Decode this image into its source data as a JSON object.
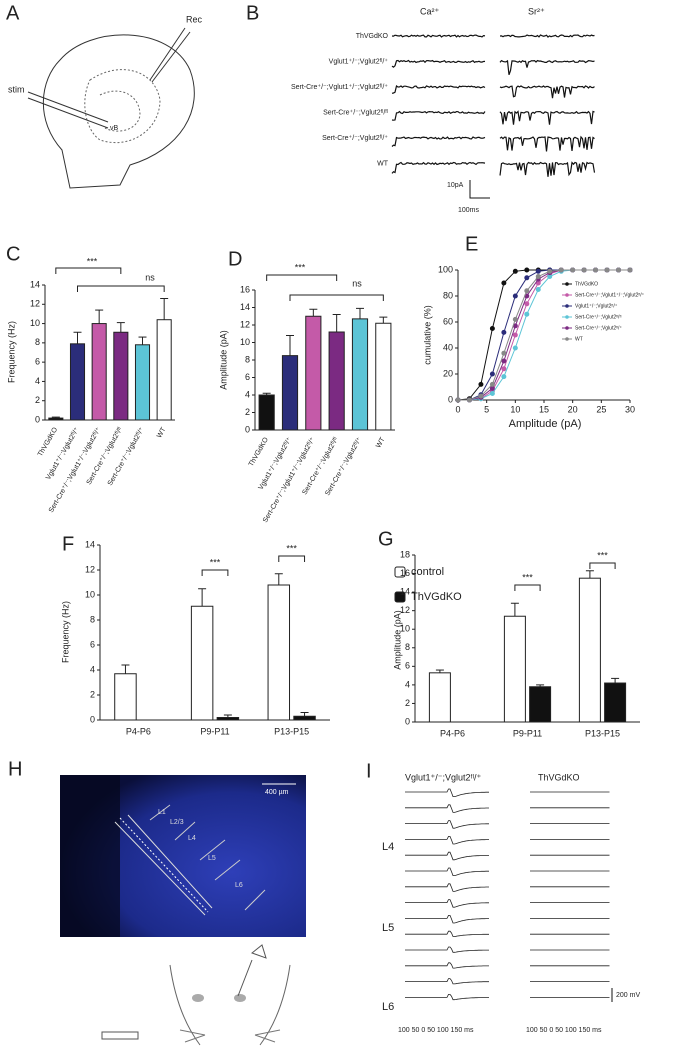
{
  "panel_a": {
    "label": "A",
    "stim": "stim",
    "rec": "Rec",
    "region": "vB"
  },
  "panel_b": {
    "label": "B",
    "conditions": [
      "Ca²⁺",
      "Sr²⁺"
    ],
    "genotypes": [
      "ThVGdKO",
      "Vglut1⁺/⁻;Vglut2ᶠˡ/⁺",
      "Sert-Cre⁺/⁻;Vglut1⁺/⁻;Vglut2ᶠˡ/⁺",
      "Sert-Cre⁺/⁻;Vglut2ᶠˡ/ᶠˡ",
      "Sert-Cre⁺/⁻;Vglut2ᶠˡ/⁺",
      "WT"
    ],
    "scale_y": "10pA",
    "scale_x": "100ms"
  },
  "chart_data": [
    {
      "type": "bar",
      "panel": "C",
      "ylabel": "Frequency (Hz)",
      "categories": [
        "ThVGdKO",
        "Vglut1⁺/⁻;Vglut2ᶠˡ/⁺",
        "Sert-Cre⁺/⁻;Vglut1⁺/⁻;Vglut2ᶠˡ/⁺",
        "Sert-Cre⁺/⁻;Vglut2ᶠˡ/ᶠˡ",
        "Sert-Cre⁺/⁻;Vglut2ᶠˡ/⁺",
        "WT"
      ],
      "values": [
        0.2,
        7.9,
        10.0,
        9.1,
        7.8,
        10.4
      ],
      "errors": [
        0.1,
        1.2,
        1.4,
        1.0,
        0.8,
        2.2
      ],
      "colors": [
        "#111111",
        "#2b2d7a",
        "#c45aa8",
        "#7b2a82",
        "#5cc4d6",
        "#ffffff"
      ],
      "ylim": [
        0,
        14
      ],
      "yticks": [
        0,
        2,
        4,
        6,
        8,
        10,
        12,
        14
      ],
      "annotations": [
        "***",
        "ns"
      ]
    },
    {
      "type": "bar",
      "panel": "D",
      "ylabel": "Amplitude (pA)",
      "categories": [
        "ThVGdKO",
        "Vglut1⁺/⁻;Vglut2ᶠˡ/⁺",
        "Sert-Cre⁺/⁻;Vglut1⁺/⁻;Vglut2ᶠˡ/⁺",
        "Sert-Cre⁺/⁻;Vglut2ᶠˡ/ᶠˡ",
        "Sert-Cre⁺/⁻;Vglut2ᶠˡ/⁺",
        "WT"
      ],
      "values": [
        4.0,
        8.5,
        13.0,
        11.2,
        12.7,
        12.2
      ],
      "errors": [
        0.2,
        2.3,
        0.8,
        2.0,
        1.2,
        0.7
      ],
      "colors": [
        "#111111",
        "#2b2d7a",
        "#c45aa8",
        "#7b2a82",
        "#5cc4d6",
        "#ffffff"
      ],
      "ylim": [
        0,
        16
      ],
      "yticks": [
        0,
        2,
        4,
        6,
        8,
        10,
        12,
        14,
        16
      ],
      "annotations": [
        "***",
        "ns"
      ]
    },
    {
      "type": "line",
      "panel": "E",
      "ylabel": "cumulative (%)",
      "xlabel": "Amplitude (pA)",
      "x": [
        0,
        2,
        4,
        6,
        8,
        10,
        12,
        14,
        16,
        18,
        20,
        22,
        24,
        26,
        28,
        30
      ],
      "series": [
        {
          "name": "ThVGdKO",
          "color": "#111111",
          "values": [
            0,
            1,
            12,
            55,
            90,
            99,
            100,
            100,
            100,
            100,
            100,
            100,
            100,
            100,
            100,
            100
          ]
        },
        {
          "name": "Sert-Cre⁺/⁻;Vglut1⁺/⁻;Vglut2ᶠˡ/⁺",
          "color": "#c45aa8",
          "values": [
            0,
            0,
            1,
            7,
            24,
            50,
            74,
            90,
            97,
            100,
            100,
            100,
            100,
            100,
            100,
            100
          ]
        },
        {
          "name": "Vglut1⁺/⁻;Vglut2ᶠˡ/⁺",
          "color": "#2b2d7a",
          "values": [
            0,
            0,
            4,
            20,
            52,
            80,
            94,
            99,
            100,
            100,
            100,
            100,
            100,
            100,
            100,
            100
          ]
        },
        {
          "name": "Sert-Cre⁺/⁻;Vglut2ᶠˡ/ᶠˡ",
          "color": "#5cc4d6",
          "values": [
            0,
            0,
            1,
            5,
            18,
            40,
            66,
            85,
            95,
            99,
            100,
            100,
            100,
            100,
            100,
            100
          ]
        },
        {
          "name": "Sert-Cre⁺/⁻;Vglut2ᶠˡ/⁺",
          "color": "#7b2a82",
          "values": [
            0,
            0,
            2,
            9,
            30,
            57,
            80,
            93,
            98,
            100,
            100,
            100,
            100,
            100,
            100,
            100
          ]
        },
        {
          "name": "WT",
          "color": "#888888",
          "values": [
            0,
            0,
            3,
            12,
            36,
            62,
            84,
            95,
            99,
            100,
            100,
            100,
            100,
            100,
            100,
            100
          ]
        }
      ],
      "xlim": [
        0,
        30
      ],
      "xticks": [
        0,
        5,
        10,
        15,
        20,
        25,
        30
      ],
      "ylim": [
        0,
        100
      ],
      "yticks": [
        0,
        20,
        40,
        60,
        80,
        100
      ],
      "legend": "right"
    },
    {
      "type": "bar",
      "panel": "F",
      "ylabel": "Frequency (Hz)",
      "categories": [
        "P4-P6",
        "P9-P11",
        "P13-P15"
      ],
      "series": [
        {
          "name": "control",
          "color": "#ffffff",
          "values": [
            3.7,
            9.1,
            10.8
          ],
          "errors": [
            0.7,
            1.4,
            0.9
          ]
        },
        {
          "name": "ThVGdKO",
          "color": "#111111",
          "values": [
            null,
            0.2,
            0.3
          ],
          "errors": [
            null,
            0.2,
            0.3
          ]
        }
      ],
      "ylim": [
        0,
        14
      ],
      "yticks": [
        0,
        2,
        4,
        6,
        8,
        10,
        12,
        14
      ],
      "annotations": [
        "***",
        "***"
      ],
      "legend": "right"
    },
    {
      "type": "bar",
      "panel": "G",
      "ylabel": "Amplitude (pA)",
      "categories": [
        "P4-P6",
        "P9-P11",
        "P13-P15"
      ],
      "series": [
        {
          "name": "control",
          "color": "#ffffff",
          "values": [
            5.3,
            11.4,
            15.5
          ],
          "errors": [
            0.3,
            1.4,
            0.8
          ]
        },
        {
          "name": "ThVGdKO",
          "color": "#111111",
          "values": [
            null,
            3.8,
            4.2
          ],
          "errors": [
            null,
            0.2,
            0.5
          ]
        }
      ],
      "ylim": [
        0,
        18
      ],
      "yticks": [
        0,
        2,
        4,
        6,
        8,
        10,
        12,
        14,
        16,
        18
      ],
      "annotations": [
        "***",
        "***"
      ]
    }
  ],
  "panel_h": {
    "label": "H",
    "layers": [
      "L1",
      "L2/3",
      "L4",
      "L5",
      "L6"
    ],
    "scale": "400 µm"
  },
  "panel_i": {
    "label": "I",
    "columns": [
      "Vglut1⁺/⁻;Vglut2ᶠˡ/⁺",
      "ThVGdKO"
    ],
    "rows": [
      "L4",
      "L5",
      "L6"
    ],
    "scale": "200 mV",
    "x_axis": "100  50  0  50  100 150 ms"
  }
}
